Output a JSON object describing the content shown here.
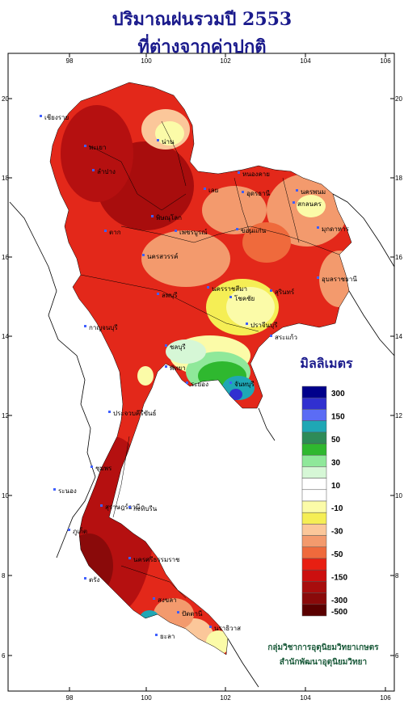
{
  "title_line1": "ปริมาณฝนรวมปี  2553",
  "title_line2": "ที่ต่างจากค่าปกติ",
  "legend": {
    "unit": "มิลลิเมตร",
    "bins": [
      {
        "color": "#00008b",
        "label": "300"
      },
      {
        "color": "#3030d0",
        "label": ""
      },
      {
        "color": "#5b6cf5",
        "label": "150"
      },
      {
        "color": "#1fa7b5",
        "label": ""
      },
      {
        "color": "#2e8b57",
        "label": "50"
      },
      {
        "color": "#2fb82f",
        "label": ""
      },
      {
        "color": "#8fe89a",
        "label": "30"
      },
      {
        "color": "#d6f7d6",
        "label": ""
      },
      {
        "color": "#ffffff",
        "label": "10"
      },
      {
        "color": "#ffffff",
        "label": ""
      },
      {
        "color": "#fbfba8",
        "label": "-10"
      },
      {
        "color": "#f5ee55",
        "label": ""
      },
      {
        "color": "#fbc79a",
        "label": "-30"
      },
      {
        "color": "#f39a6d",
        "label": ""
      },
      {
        "color": "#ef6a3c",
        "label": "-50"
      },
      {
        "color": "#e81f12",
        "label": ""
      },
      {
        "color": "#cc0f0f",
        "label": "-150"
      },
      {
        "color": "#a80d0d",
        "label": ""
      },
      {
        "color": "#8a0a0a",
        "label": "-300"
      },
      {
        "color": "#5a0000",
        "label": "-500"
      }
    ]
  },
  "axes": {
    "lon_ticks": [
      "98",
      "100",
      "102",
      "104",
      "106"
    ],
    "lat_ticks": [
      "20",
      "18",
      "16",
      "14",
      "12",
      "10",
      "8",
      "6"
    ]
  },
  "provinces": [
    "เชียงราย",
    "น่าน",
    "พะเยา",
    "ลำปาง",
    "หนองคาย",
    "เลย",
    "อุดรธานี",
    "นครพนม",
    "สกลนคร",
    "มุกดาหาร",
    "พิษณุโลก",
    "เพชรบูรณ์",
    "ขอนแก่น",
    "ตาก",
    "นครสวรรค์",
    "อุบลราชธานี",
    "นครราชสีมา",
    "สุรินทร์",
    "โชคชัย",
    "ลพบุรี",
    "ปราจีนบุรี",
    "กาญจนบุรี",
    "สระแก้ว",
    "ชลบุรี",
    "ระยอง",
    "จันทบุรี",
    "พัทยา",
    "ประจวบคีรีขันธ์",
    "ชุมพร",
    "สุราษฎร์ธานี",
    "ระนอง",
    "กะทิบรีน",
    "ภูเก็ต",
    "นครศรีธรรมราช",
    "ตรัง",
    "สงขลา",
    "ปัตตานี",
    "นราธิวาส",
    "ยะลา"
  ],
  "credits": {
    "line1": "กลุ่มวิชาการอุตุนิยมวิทยาเกษตร",
    "line2": "สำนักพัฒนาอุตุนิยมวิทยา"
  }
}
